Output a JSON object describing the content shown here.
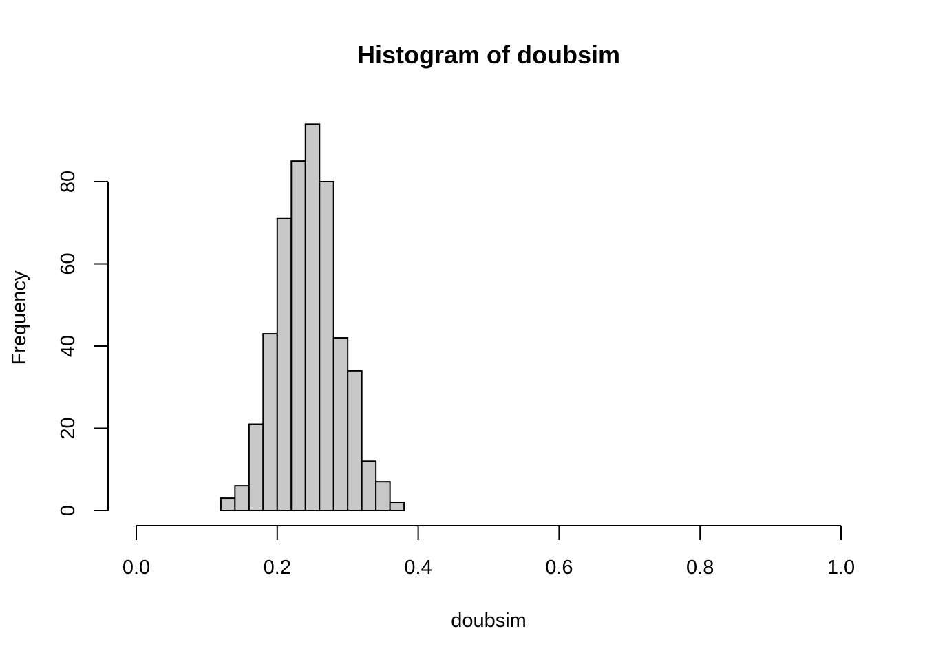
{
  "chart_data": {
    "type": "bar",
    "title": "Histogram of doubsim",
    "xlabel": "doubsim",
    "ylabel": "Frequency",
    "xlim": [
      0.0,
      1.0
    ],
    "ylim": [
      0,
      94
    ],
    "grid": false,
    "legend": "none",
    "bar_fill": "#C8C8C8",
    "bar_stroke": "#000000",
    "bin_width": 0.02,
    "bins": [
      {
        "start": 0.12,
        "end": 0.14,
        "count": 3
      },
      {
        "start": 0.14,
        "end": 0.16,
        "count": 6
      },
      {
        "start": 0.16,
        "end": 0.18,
        "count": 21
      },
      {
        "start": 0.18,
        "end": 0.2,
        "count": 43
      },
      {
        "start": 0.2,
        "end": 0.22,
        "count": 71
      },
      {
        "start": 0.22,
        "end": 0.24,
        "count": 85
      },
      {
        "start": 0.24,
        "end": 0.26,
        "count": 94
      },
      {
        "start": 0.26,
        "end": 0.28,
        "count": 80
      },
      {
        "start": 0.28,
        "end": 0.3,
        "count": 42
      },
      {
        "start": 0.3,
        "end": 0.32,
        "count": 34
      },
      {
        "start": 0.32,
        "end": 0.34,
        "count": 12
      },
      {
        "start": 0.34,
        "end": 0.36,
        "count": 7
      },
      {
        "start": 0.36,
        "end": 0.38,
        "count": 2
      }
    ],
    "x_ticks": [
      {
        "value": 0.0,
        "label": "0.0"
      },
      {
        "value": 0.2,
        "label": "0.2"
      },
      {
        "value": 0.4,
        "label": "0.4"
      },
      {
        "value": 0.6,
        "label": "0.6"
      },
      {
        "value": 0.8,
        "label": "0.8"
      },
      {
        "value": 1.0,
        "label": "1.0"
      }
    ],
    "y_ticks": [
      {
        "value": 0,
        "label": "0"
      },
      {
        "value": 20,
        "label": "20"
      },
      {
        "value": 40,
        "label": "40"
      },
      {
        "value": 60,
        "label": "60"
      },
      {
        "value": 80,
        "label": "80"
      }
    ]
  }
}
